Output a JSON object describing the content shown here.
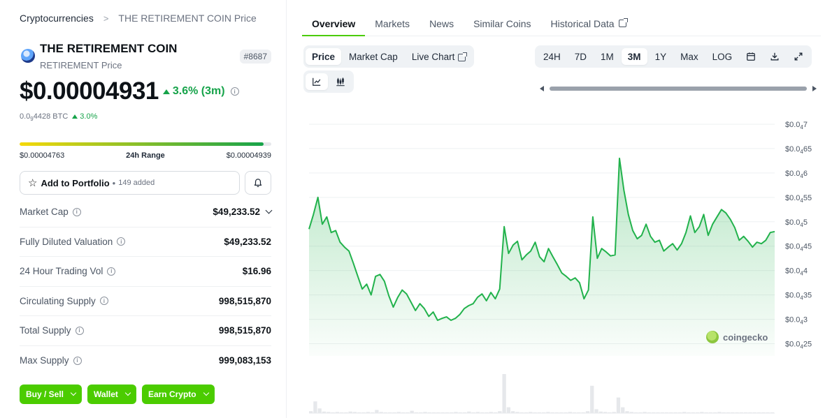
{
  "breadcrumb": {
    "root": "Cryptocurrencies",
    "separator": ">",
    "current": "THE RETIREMENT COIN Price"
  },
  "coin": {
    "name": "THE RETIREMENT COIN",
    "subtitle": "RETIREMENT Price",
    "rank": "#8687",
    "price": "$0.00004931",
    "change": "3.6% (3m)",
    "btc_prefix": "0.0",
    "btc_sub": "9",
    "btc_rest": "4428 BTC",
    "btc_change": "3.0%"
  },
  "range": {
    "low": "$0.00004763",
    "label": "24h Range",
    "high": "$0.00004939",
    "position": 0.97
  },
  "portfolio": {
    "label": "Add to Portfolio",
    "dot": "•",
    "added": "149 added"
  },
  "stats": [
    {
      "label": "Market Cap",
      "value": "$49,233.52"
    },
    {
      "label": "Fully Diluted Valuation",
      "value": "$49,233.52"
    },
    {
      "label": "24 Hour Trading Vol",
      "value": "$16.96"
    },
    {
      "label": "Circulating Supply",
      "value": "998,515,870"
    },
    {
      "label": "Total Supply",
      "value": "998,515,870"
    },
    {
      "label": "Max Supply",
      "value": "999,083,153"
    }
  ],
  "actions": [
    "Buy / Sell",
    "Wallet",
    "Earn Crypto"
  ],
  "tabs": [
    "Overview",
    "Markets",
    "News",
    "Similar Coins",
    "Historical Data"
  ],
  "chart_types": [
    "Price",
    "Market Cap",
    "Live Chart"
  ],
  "ranges": [
    "24H",
    "7D",
    "1M",
    "3M",
    "1Y",
    "Max",
    "LOG"
  ],
  "selected_range": "3M",
  "watermark": "coingecko",
  "colors": {
    "accent": "#4bcc00",
    "positive": "#16a34a",
    "line": "#22b24c"
  },
  "chart_data": {
    "type": "area",
    "ylim": [
      2.25e-05,
      7.2e-05
    ],
    "y_ticks": [
      {
        "value": 7e-05,
        "prefix": "$0.0",
        "sub": "4",
        "rest": "7"
      },
      {
        "value": 6.5e-05,
        "prefix": "$0.0",
        "sub": "4",
        "rest": "65"
      },
      {
        "value": 6e-05,
        "prefix": "$0.0",
        "sub": "4",
        "rest": "6"
      },
      {
        "value": 5.5e-05,
        "prefix": "$0.0",
        "sub": "4",
        "rest": "55"
      },
      {
        "value": 5e-05,
        "prefix": "$0.0",
        "sub": "4",
        "rest": "5"
      },
      {
        "value": 4.5e-05,
        "prefix": "$0.0",
        "sub": "4",
        "rest": "45"
      },
      {
        "value": 4e-05,
        "prefix": "$0.0",
        "sub": "4",
        "rest": "4"
      },
      {
        "value": 3.5e-05,
        "prefix": "$0.0",
        "sub": "4",
        "rest": "35"
      },
      {
        "value": 3e-05,
        "prefix": "$0.0",
        "sub": "4",
        "rest": "3"
      },
      {
        "value": 2.5e-05,
        "prefix": "$0.0",
        "sub": "4",
        "rest": "25"
      }
    ],
    "price_series": [
      4.85e-05,
      5.15e-05,
      5.5e-05,
      4.95e-05,
      5.1e-05,
      4.78e-05,
      4.82e-05,
      4.58e-05,
      4.48e-05,
      4.4e-05,
      4.15e-05,
      3.88e-05,
      3.62e-05,
      3.72e-05,
      3.5e-05,
      3.88e-05,
      3.92e-05,
      3.78e-05,
      3.48e-05,
      3.25e-05,
      3.45e-05,
      3.6e-05,
      3.52e-05,
      3.35e-05,
      3.18e-05,
      3.32e-05,
      3.22e-05,
      3.06e-05,
      3.15e-05,
      2.98e-05,
      3.02e-05,
      3.05e-05,
      2.98e-05,
      3.02e-05,
      3.1e-05,
      3.22e-05,
      3.28e-05,
      3.32e-05,
      3.45e-05,
      3.52e-05,
      3.38e-05,
      3.55e-05,
      3.42e-05,
      3.62e-05,
      4.9e-05,
      4.35e-05,
      4.52e-05,
      4.6e-05,
      4.22e-05,
      4.32e-05,
      4.4e-05,
      4.58e-05,
      4.28e-05,
      4.18e-05,
      4.45e-05,
      4.28e-05,
      4.12e-05,
      3.95e-05,
      3.88e-05,
      3.8e-05,
      3.85e-05,
      3.75e-05,
      3.42e-05,
      3.6e-05,
      5.1e-05,
      4.25e-05,
      4.45e-05,
      4.38e-05,
      4.3e-05,
      4.32e-05,
      6.3e-05,
      5.65e-05,
      5.15e-05,
      4.82e-05,
      4.65e-05,
      4.72e-05,
      4.95e-05,
      4.7e-05,
      4.58e-05,
      4.62e-05,
      4.4e-05,
      4.48e-05,
      4.55e-05,
      4.42e-05,
      4.55e-05,
      4.78e-05,
      5.12e-05,
      4.78e-05,
      4.9e-05,
      5.15e-05,
      4.72e-05,
      4.95e-05,
      5.1e-05,
      5.25e-05,
      5.18e-05,
      5.05e-05,
      4.88e-05,
      4.62e-05,
      4.7e-05,
      4.6e-05,
      4.48e-05,
      4.58e-05,
      4.55e-05,
      4.62e-05,
      4.78e-05,
      4.8e-05
    ],
    "volume_series": [
      0.05,
      0.3,
      0.12,
      0.04,
      0.03,
      0.02,
      0.03,
      0.02,
      0.02,
      0.04,
      0.03,
      0.02,
      0.02,
      0.03,
      0.02,
      0.08,
      0.03,
      0.02,
      0.02,
      0.02,
      0.03,
      0.02,
      0.02,
      0.06,
      0.02,
      0.02,
      0.03,
      0.02,
      0.02,
      0.02,
      0.02,
      0.02,
      0.02,
      0.03,
      0.02,
      0.02,
      0.04,
      0.02,
      0.03,
      0.02,
      0.02,
      0.03,
      0.02,
      0.05,
      1.0,
      0.15,
      0.05,
      0.03,
      0.02,
      0.02,
      0.03,
      0.02,
      0.02,
      0.02,
      0.03,
      0.02,
      0.02,
      0.02,
      0.02,
      0.03,
      0.02,
      0.02,
      0.02,
      0.05,
      0.7,
      0.1,
      0.04,
      0.03,
      0.02,
      0.03,
      0.4,
      0.15,
      0.05,
      0.03,
      0.02,
      0.02,
      0.03,
      0.02,
      0.02,
      0.02,
      0.02,
      0.02,
      0.02,
      0.02,
      0.02,
      0.03,
      0.02,
      0.02,
      0.02,
      0.03,
      0.02,
      0.02,
      0.02,
      0.03,
      0.02,
      0.02,
      0.02,
      0.02,
      0.02,
      0.02,
      0.02,
      0.02,
      0.02,
      0.02,
      0.02,
      0.02
    ]
  }
}
